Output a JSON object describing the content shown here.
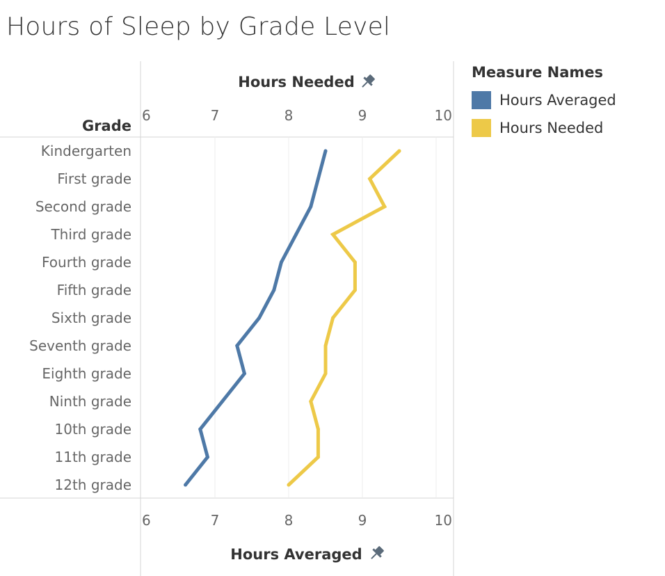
{
  "chart_data": {
    "type": "line",
    "title": "Hours of Sleep by Grade Level",
    "row_header": "Grade",
    "top_axis_title": "Hours Needed",
    "bottom_axis_title": "Hours Averaged",
    "xlim": [
      6,
      10
    ],
    "x_ticks": [
      6,
      7,
      8,
      9,
      10
    ],
    "grid": true,
    "legend": {
      "title": "Measure Names",
      "position": "right"
    },
    "categories": [
      "Kindergarten",
      "First grade",
      "Second grade",
      "Third grade",
      "Fourth grade",
      "Fifth grade",
      "Sixth grade",
      "Seventh grade",
      "Eighth grade",
      "Ninth grade",
      "10th grade",
      "11th grade",
      "12th grade"
    ],
    "series": [
      {
        "name": "Hours Averaged",
        "color": "#4e79a7",
        "values": [
          8.5,
          8.4,
          8.3,
          8.1,
          7.9,
          7.8,
          7.6,
          7.3,
          7.4,
          7.1,
          6.8,
          6.9,
          6.6
        ]
      },
      {
        "name": "Hours Needed",
        "color": "#edc948",
        "values": [
          9.5,
          9.1,
          9.3,
          8.6,
          8.9,
          8.9,
          8.6,
          8.5,
          8.5,
          8.3,
          8.4,
          8.4,
          8.0
        ]
      }
    ]
  },
  "icons": {
    "top_axis_pin": "pin-icon",
    "bottom_axis_pin": "pin-icon"
  }
}
